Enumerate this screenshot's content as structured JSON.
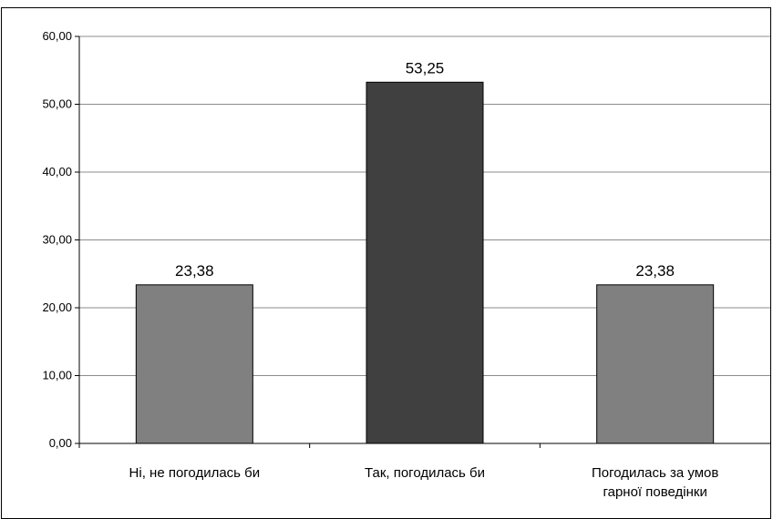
{
  "chart_data": {
    "type": "bar",
    "title": "",
    "xlabel": "",
    "ylabel": "",
    "ylim": [
      0,
      60
    ],
    "yticks": [
      0,
      10,
      20,
      30,
      40,
      50,
      60
    ],
    "ytick_labels": [
      "0,00",
      "10,00",
      "20,00",
      "30,00",
      "40,00",
      "50,00",
      "60,00"
    ],
    "grid": true,
    "legend": "none",
    "categories": [
      [
        "Ні, не погодилась би"
      ],
      [
        "Так, погодилась би"
      ],
      [
        "Погодилась за умов",
        "гарної поведінки"
      ]
    ],
    "values": [
      23.38,
      53.25,
      23.38
    ],
    "data_labels": [
      "23,38",
      "53,25",
      "23,38"
    ],
    "bar_colors": [
      "#808080",
      "#404040",
      "#808080"
    ],
    "bar_edge_color": "#000000",
    "grid_color": "#8c8c8c"
  }
}
